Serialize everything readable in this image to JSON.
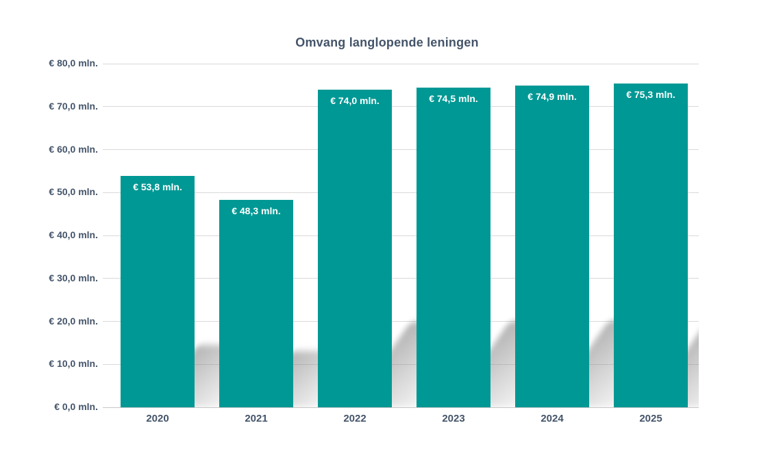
{
  "title": "Omvang langlopende leningen",
  "chart_data": {
    "type": "bar",
    "title": "Omvang langlopende leningen",
    "xlabel": "",
    "ylabel": "",
    "categories": [
      "2020",
      "2021",
      "2022",
      "2023",
      "2024",
      "2025"
    ],
    "values": [
      53.8,
      48.3,
      74.0,
      74.5,
      74.9,
      75.3
    ],
    "bar_labels": [
      "€ 53,8 mln.",
      "€ 48,3 mln.",
      "€ 74,0 mln.",
      "€ 74,5 mln.",
      "€ 74,9 mln.",
      "€ 75,3 mln."
    ],
    "ylim": [
      0,
      80
    ],
    "ytick_step": 10,
    "yticks": [
      {
        "value": 0,
        "label": "€ 0,0 mln."
      },
      {
        "value": 10,
        "label": "€ 10,0 mln."
      },
      {
        "value": 20,
        "label": "€ 20,0 mln."
      },
      {
        "value": 30,
        "label": "€ 30,0 mln."
      },
      {
        "value": 40,
        "label": "€ 40,0 mln."
      },
      {
        "value": 50,
        "label": "€ 50,0 mln."
      },
      {
        "value": 60,
        "label": "€ 60,0 mln."
      },
      {
        "value": 70,
        "label": "€ 70,0 mln."
      },
      {
        "value": 80,
        "label": "€ 80,0 mln."
      }
    ],
    "grid": true,
    "legend": false,
    "bar_color": "#009894",
    "bar_label_color": "#ffffff",
    "title_color": "#44546A",
    "axis_text_color": "#44546A",
    "gridline_color": "#D9D9D9",
    "baseline_color": "#C6C6C6",
    "shadow_color": "#BEBEBE"
  }
}
